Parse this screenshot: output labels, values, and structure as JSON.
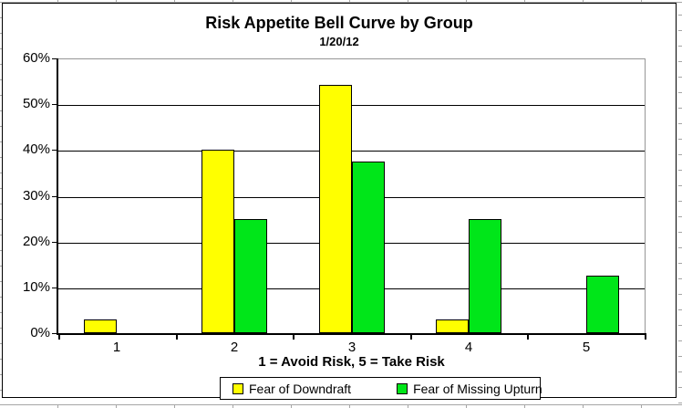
{
  "chart_data": {
    "type": "bar",
    "title": "Risk Appetite Bell Curve by Group",
    "subtitle": "1/20/12",
    "categories": [
      "1",
      "2",
      "3",
      "4",
      "5"
    ],
    "series": [
      {
        "name": "Fear of Downdraft",
        "color": "#FFFF00",
        "values": [
          2.9,
          40,
          54.3,
          2.9,
          0
        ]
      },
      {
        "name": "Fear of Missing Upturn",
        "color": "#00E619",
        "values": [
          0,
          25,
          37.5,
          25,
          12.5
        ]
      }
    ],
    "xlabel": "1 = Avoid Risk, 5 = Take Risk",
    "ylabel": "",
    "ylim": [
      0,
      60
    ],
    "ytick_interval": 10,
    "ytick_labels": [
      "0%",
      "10%",
      "20%",
      "30%",
      "40%",
      "50%",
      "60%"
    ],
    "grid": true,
    "gridline_color": "#000000",
    "plot_border_color": "#969696",
    "legend_position": "bottom"
  }
}
